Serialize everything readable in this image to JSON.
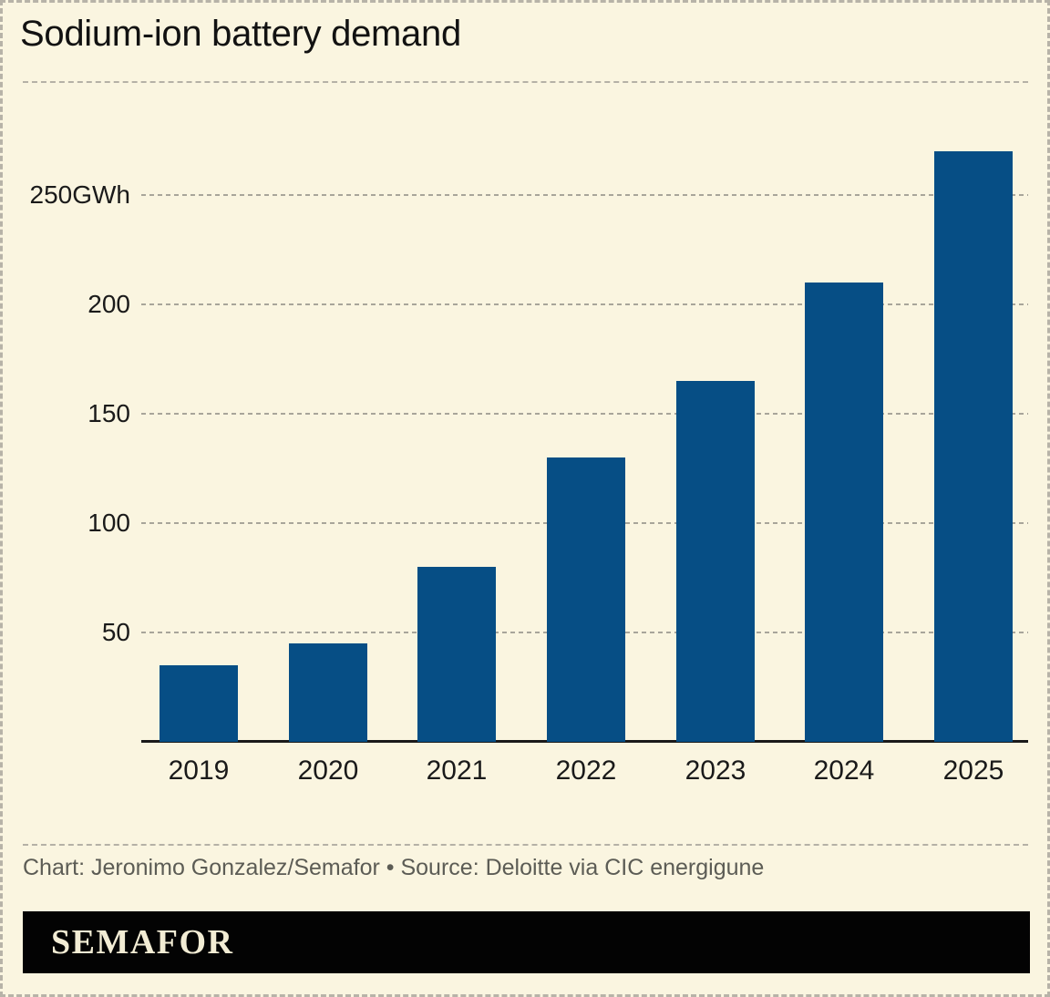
{
  "header": {
    "title": "Sodium-ion battery demand"
  },
  "chart_data": {
    "type": "bar",
    "title": "Sodium-ion battery demand",
    "categories": [
      "2019",
      "2020",
      "2021",
      "2022",
      "2023",
      "2024",
      "2025"
    ],
    "values": [
      35,
      45,
      80,
      130,
      165,
      210,
      270
    ],
    "unit": "GWh",
    "xlabel": "",
    "ylabel": "GWh",
    "ylim": [
      0,
      280
    ],
    "yticks": [
      50,
      100,
      150,
      200,
      250
    ],
    "ytick_labels": [
      "50",
      "100",
      "150",
      "200",
      "250GWh"
    ],
    "grid": true,
    "legend": "none",
    "bar_color": "#064E85"
  },
  "footer": {
    "credit": "Chart: Jeronimo Gonzalez/Semafor • Source: Deloitte via CIC energigune",
    "logo_text": "SEMAFOR"
  },
  "colors": {
    "background": "#FAF5E0",
    "bar": "#064E85",
    "title_text": "#121212",
    "tick_text": "#1A1A1A",
    "credit_text": "#5C5C55",
    "gridline": "#A8A59A",
    "border_dash": "#B7B3A8",
    "axis_line": "#1A1A1A",
    "logo_background": "#030303",
    "logo_text": "#F2ECD4"
  }
}
